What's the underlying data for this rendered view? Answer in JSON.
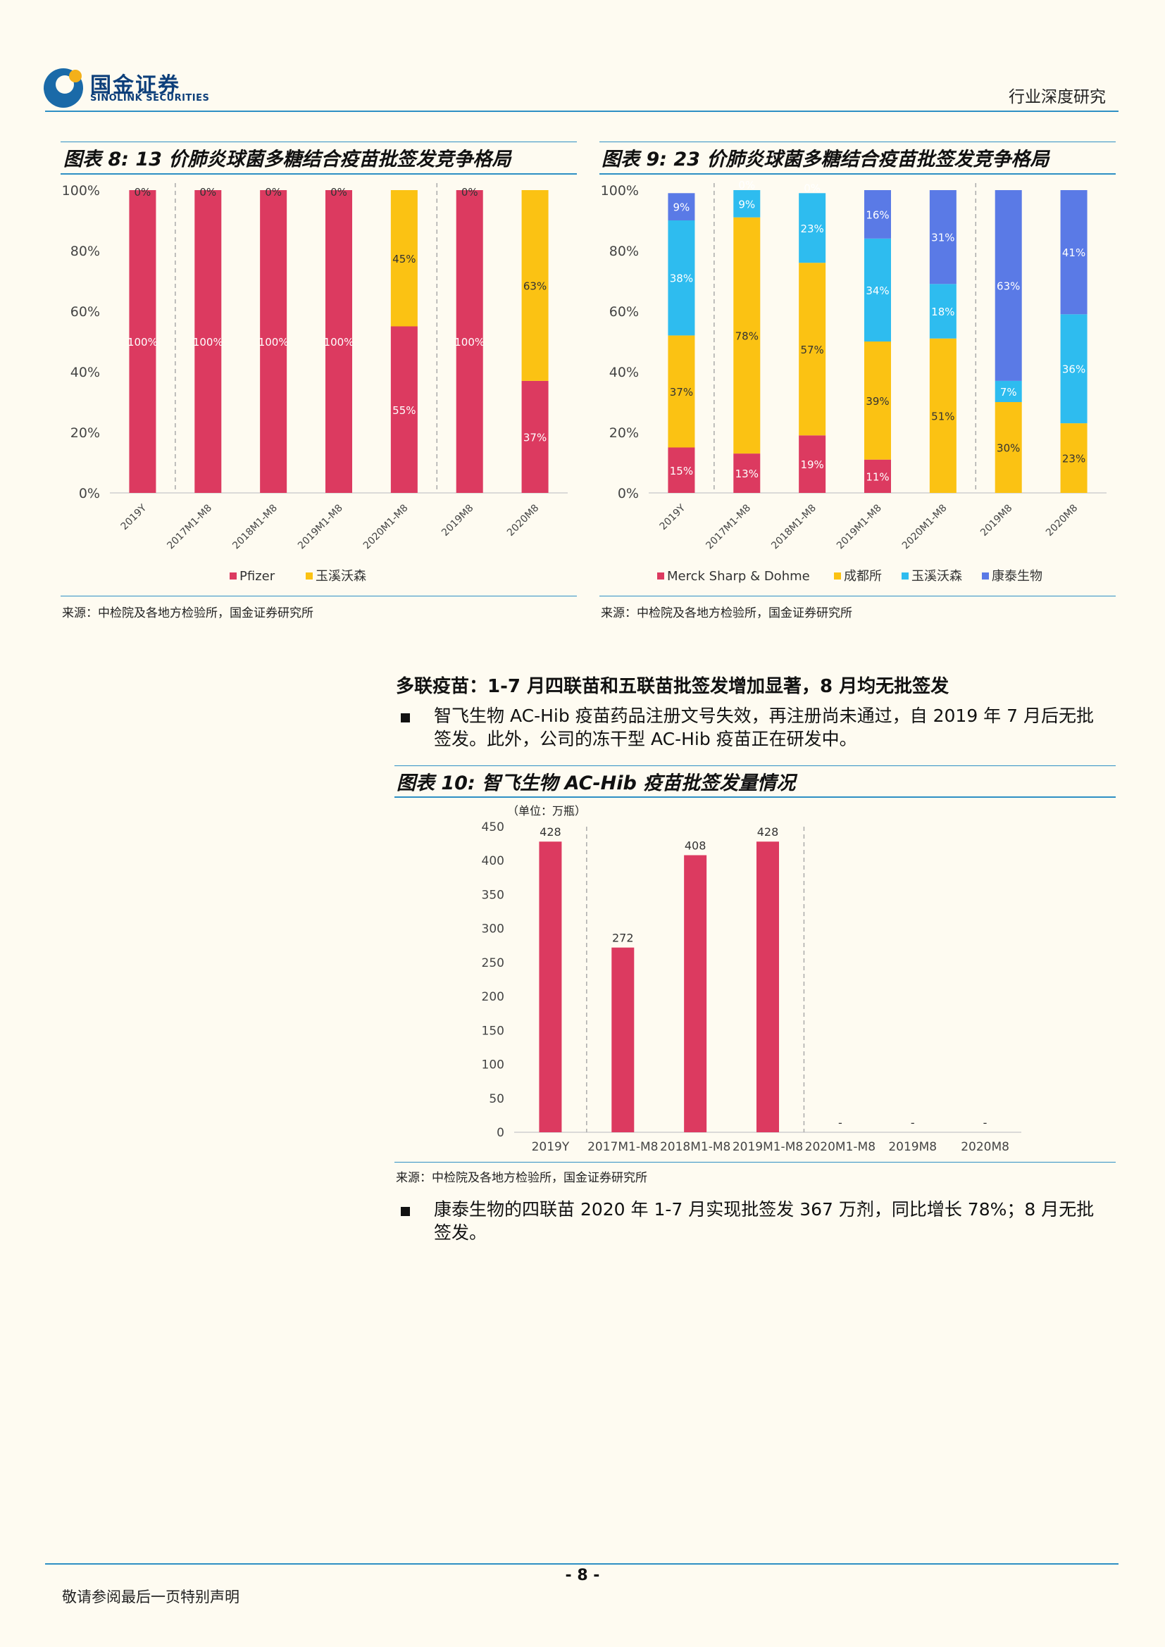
{
  "header": {
    "logo_cn": "国金证券",
    "logo_en": "SINOLINK SECURITIES",
    "report_type": "行业深度研究"
  },
  "colors": {
    "rule": "#2e8fc4",
    "red": "#dc3a60",
    "yellow": "#fbc213",
    "cyan": "#2ebcef",
    "blue": "#5a7ae6"
  },
  "fig8": {
    "title": "图表 8:  13 价肺炎球菌多糖结合疫苗批签发竞争格局",
    "source": "来源：中检院及各地方检验所，国金证券研究所"
  },
  "fig9": {
    "title": "图表 9:  23 价肺炎球菌多糖结合疫苗批签发竞争格局",
    "source": "来源：中检院及各地方检验所，国金证券研究所"
  },
  "section": {
    "heading": "多联疫苗：1-7 月四联苗和五联苗批签发增加显著，8 月均无批签发",
    "bullet1": "智飞生物 AC-Hib 疫苗药品注册文号失效，再注册尚未通过，自 2019 年 7 月后无批签发。此外，公司的冻干型 AC-Hib 疫苗正在研发中。",
    "bullet2": "康泰生物的四联苗 2020 年 1-7 月实现批签发 367 万剂，同比增长 78%；8 月无批签发。"
  },
  "fig10": {
    "title": "图表 10:  智飞生物 AC-Hib 疫苗批签发量情况",
    "unit": "（单位：万瓶）",
    "source": "来源：中检院及各地方检验所，国金证券研究所"
  },
  "footer": {
    "page": "- 8 -",
    "note": "敬请参阅最后一页特别声明"
  },
  "chart_data": [
    {
      "id": "fig8",
      "type": "bar",
      "stacked": true,
      "categories": [
        "2019Y",
        "2017M1-M8",
        "2018M1-M8",
        "2019M1-M8",
        "2020M1-M8",
        "2019M8",
        "2020M8"
      ],
      "series": [
        {
          "name": "Pfizer",
          "color": "#dc3a60",
          "values": [
            100,
            100,
            100,
            100,
            55,
            100,
            37
          ]
        },
        {
          "name": "玉溪沃森",
          "color": "#fbc213",
          "values": [
            0,
            0,
            0,
            0,
            45,
            0,
            63
          ]
        }
      ],
      "ylim": [
        0,
        100
      ],
      "yticks": [
        "0%",
        "20%",
        "40%",
        "60%",
        "80%",
        "100%"
      ],
      "separators_after_index": [
        0,
        4
      ],
      "legend": "bottom"
    },
    {
      "id": "fig9",
      "type": "bar",
      "stacked": true,
      "categories": [
        "2019Y",
        "2017M1-M8",
        "2018M1-M8",
        "2019M1-M8",
        "2020M1-M8",
        "2019M8",
        "2020M8"
      ],
      "series": [
        {
          "name": "Merck Sharp & Dohme",
          "color": "#dc3a60",
          "values": [
            15,
            13,
            19,
            11,
            0,
            0,
            0
          ]
        },
        {
          "name": "成都所",
          "color": "#fbc213",
          "values": [
            37,
            78,
            57,
            39,
            51,
            30,
            23
          ]
        },
        {
          "name": "玉溪沃森",
          "color": "#2ebcef",
          "values": [
            38,
            9,
            23,
            34,
            18,
            7,
            36
          ]
        },
        {
          "name": "康泰生物",
          "color": "#5a7ae6",
          "values": [
            9,
            0,
            0,
            16,
            31,
            63,
            41
          ]
        }
      ],
      "ylim": [
        0,
        100
      ],
      "yticks": [
        "0%",
        "20%",
        "40%",
        "60%",
        "80%",
        "100%"
      ],
      "separators_after_index": [
        0,
        4
      ],
      "legend": "bottom"
    },
    {
      "id": "fig10",
      "type": "bar",
      "categories": [
        "2019Y",
        "2017M1-M8",
        "2018M1-M8",
        "2019M1-M8",
        "2020M1-M8",
        "2019M8",
        "2020M8"
      ],
      "values": [
        428,
        272,
        408,
        428,
        0,
        0,
        0
      ],
      "labels": [
        "428",
        "272",
        "408",
        "428",
        "-",
        "-",
        "-"
      ],
      "color": "#dc3a60",
      "ylim": [
        0,
        450
      ],
      "yticks": [
        0,
        50,
        100,
        150,
        200,
        250,
        300,
        350,
        400,
        450
      ],
      "separators_after_index": [
        0,
        3
      ]
    }
  ]
}
